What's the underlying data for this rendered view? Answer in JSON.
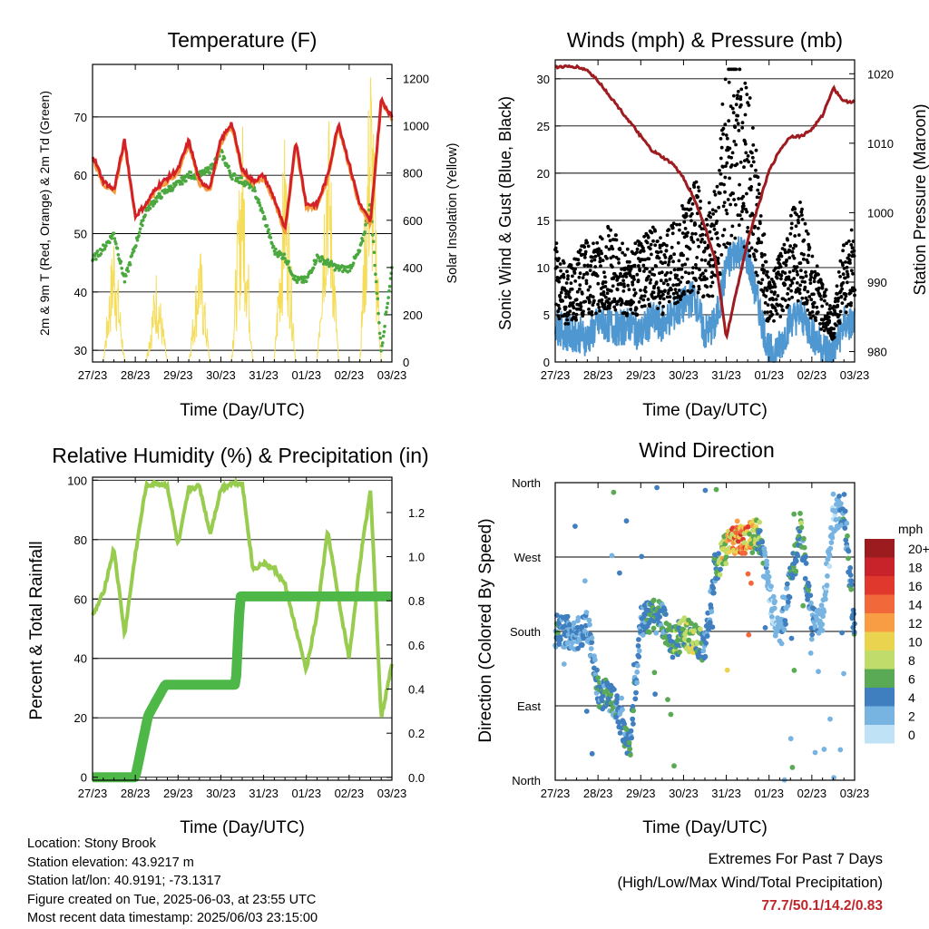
{
  "x_ticks": [
    "27/23",
    "28/23",
    "29/23",
    "30/23",
    "31/23",
    "01/23",
    "02/23",
    "03/23"
  ],
  "colors": {
    "temp": "#d42027",
    "orange": "#f39b3a",
    "dewpoint": "#4aa83f",
    "solar": "#f5dd5a",
    "wind": "#4f97d1",
    "gust": "#000000",
    "pressure": "#9e1b1f",
    "rh": "#98cc4f",
    "precip": "#4db848"
  },
  "chart_data": [
    {
      "type": "line",
      "title": "Temperature (F)",
      "xlabel": "Time (Day/UTC)",
      "ylabel": "2m & 9m T (Red, Orange) & 2m Td (Green)",
      "y2label": "Solar Insolation (Yellow)",
      "ylim": [
        28,
        79
      ],
      "y2lim": [
        0,
        1260
      ],
      "yticks": [
        30,
        40,
        50,
        60,
        70
      ],
      "y2ticks": [
        0,
        200,
        400,
        600,
        800,
        1000,
        1200
      ],
      "x": [
        0,
        0.25,
        0.5,
        0.75,
        1,
        1.25,
        1.5,
        1.75,
        2,
        2.25,
        2.5,
        2.75,
        3,
        3.25,
        3.5,
        3.75,
        4,
        4.25,
        4.5,
        4.75,
        5,
        5.25,
        5.5,
        5.75,
        6,
        6.25,
        6.5,
        6.75,
        7
      ],
      "series": [
        {
          "values": [
            63.5,
            59,
            57.5,
            66,
            53,
            55,
            58,
            59.5,
            61,
            66,
            59,
            58,
            66,
            69,
            61,
            59,
            60,
            56,
            50.5,
            66,
            55,
            55,
            60,
            69,
            62,
            55,
            52,
            73,
            70
          ]
        },
        {
          "values": [
            63,
            58.5,
            57,
            65.5,
            53,
            55,
            57.5,
            59,
            60.5,
            65.5,
            58.5,
            57.5,
            65.5,
            68.5,
            60.5,
            58.5,
            59.5,
            55.5,
            50,
            65.5,
            54.5,
            54.5,
            59.5,
            68.5,
            61.5,
            54.5,
            51.5,
            72.5,
            69.5
          ]
        },
        {
          "values": [
            45.5,
            47.5,
            50,
            42,
            48,
            54,
            56,
            57.5,
            58.5,
            60,
            60,
            61,
            64,
            60,
            59,
            58,
            53,
            47,
            46,
            42,
            42,
            46,
            45,
            44,
            44,
            47,
            55,
            30,
            44
          ]
        },
        {
          "values": [
            0,
            0,
            500,
            0,
            0,
            0,
            350,
            0,
            0,
            0,
            450,
            0,
            0,
            0,
            900,
            0,
            0,
            0,
            850,
            0,
            0,
            0,
            1000,
            0,
            0,
            0,
            1180,
            0,
            0
          ]
        }
      ]
    },
    {
      "type": "scatter",
      "title": "Winds (mph) & Pressure (mb)",
      "xlabel": "Time (Day/UTC)",
      "ylabel": "Sonic Wind & Gust (Blue, Black)",
      "y2label": "Station Pressure (Maroon)",
      "ylim": [
        0,
        32
      ],
      "y2lim": [
        978.5,
        1022
      ],
      "yticks": [
        0,
        5,
        10,
        15,
        20,
        25,
        30
      ],
      "y2ticks": [
        980,
        990,
        1000,
        1010,
        1020
      ],
      "x": [
        0,
        0.25,
        0.5,
        0.75,
        1,
        1.25,
        1.5,
        1.75,
        2,
        2.25,
        2.5,
        2.75,
        3,
        3.25,
        3.5,
        3.75,
        4,
        4.25,
        4.5,
        4.75,
        5,
        5.25,
        5.5,
        5.75,
        6,
        6.25,
        6.5,
        6.75,
        7
      ],
      "series": [
        {
          "values": [
            4,
            3,
            3,
            2.5,
            4,
            4,
            3.5,
            4,
            3,
            4.5,
            4,
            5,
            6,
            7,
            3,
            4,
            10,
            12,
            11,
            6,
            1,
            1.5,
            4.5,
            5,
            3,
            1.5,
            1,
            4,
            4
          ]
        },
        {
          "values": [
            9,
            7,
            8,
            9,
            9,
            10,
            9,
            8.5,
            9,
            10,
            9,
            11,
            12,
            14,
            11,
            13,
            22,
            24,
            21,
            14,
            6,
            8,
            11,
            12,
            8,
            6,
            4,
            9,
            10
          ]
        },
        {
          "values": [
            1021,
            1021,
            1021,
            1020.5,
            1019,
            1017,
            1015,
            1013,
            1011,
            1009,
            1008,
            1007,
            1005,
            1002,
            998,
            993,
            982,
            989,
            996,
            1001,
            1006,
            1009,
            1011,
            1011,
            1012,
            1014,
            1018,
            1016,
            1016
          ]
        }
      ]
    },
    {
      "type": "line",
      "title": "Relative Humidity (%) & Precipitation (in)",
      "xlabel": "Time (Day/UTC)",
      "ylabel": "Percent & Total Rainfall",
      "ylim": [
        -1,
        101
      ],
      "y2lim": [
        -0.013,
        1.36
      ],
      "yticks": [
        0,
        20,
        40,
        60,
        80,
        100
      ],
      "y2ticks": [
        0,
        0.2,
        0.4,
        0.6,
        0.8,
        1,
        1.2
      ],
      "x": [
        0,
        0.25,
        0.5,
        0.75,
        1,
        1.25,
        1.5,
        1.75,
        2,
        2.25,
        2.5,
        2.75,
        3,
        3.25,
        3.5,
        3.75,
        4,
        4.25,
        4.5,
        4.75,
        5,
        5.25,
        5.5,
        5.75,
        6,
        6.25,
        6.5,
        6.75,
        7
      ],
      "series": [
        {
          "values": [
            54,
            62,
            77,
            48,
            75,
            98,
            99,
            98,
            78,
            97,
            98,
            82,
            97,
            99,
            99,
            70,
            72,
            70,
            65,
            50,
            36,
            55,
            83,
            60,
            40,
            72,
            97,
            20,
            38
          ]
        },
        {
          "values": [
            0,
            0,
            0,
            0,
            0,
            0.28,
            0.32,
            0.42,
            0.42,
            0.42,
            0.42,
            0.42,
            0.42,
            0.42,
            0.82,
            0.82,
            0.82,
            0.82,
            0.82,
            0.82,
            0.82,
            0.82,
            0.82,
            0.82,
            0.82,
            0.82,
            0.82,
            0.82,
            0.82
          ]
        }
      ]
    },
    {
      "type": "scatter",
      "title": "Wind Direction",
      "xlabel": "Time (Day/UTC)",
      "ylabel": "Direction (Colored By Speed)",
      "yticks": [
        "North",
        "West",
        "South",
        "East",
        "North"
      ],
      "colorbar": {
        "title": "mph",
        "labels": [
          "20+",
          "18",
          "16",
          "14",
          "12",
          "10",
          "8",
          "6",
          "4",
          "2",
          "0"
        ],
        "colors": [
          "#9b1b1f",
          "#c8232b",
          "#e0382c",
          "#f1683a",
          "#f89d43",
          "#e9d34f",
          "#c0dd6c",
          "#5aaa55",
          "#3f7fbf",
          "#78b4e1",
          "#bfe2f6"
        ]
      },
      "x": [
        0,
        0.25,
        0.5,
        0.75,
        1,
        1.25,
        1.5,
        1.75,
        2,
        2.25,
        2.5,
        2.75,
        3,
        3.25,
        3.5,
        3.75,
        4,
        4.25,
        4.5,
        4.75,
        5,
        5.25,
        5.5,
        5.75,
        6,
        6.25,
        6.5,
        6.75,
        7
      ],
      "series": [
        {
          "values": [
            180,
            180,
            175,
            190,
            110,
            100,
            80,
            40,
            190,
            200,
            195,
            165,
            180,
            170,
            160,
            260,
            280,
            295,
            290,
            300,
            230,
            170,
            240,
            300,
            190,
            200,
            320,
            330,
            180
          ]
        }
      ]
    }
  ],
  "info": {
    "location": "Location: Stony Brook",
    "elevation": "Station elevation: 43.9217 m",
    "latlon": "Station lat/lon: 40.9191; -73.1317",
    "created": "Figure created on Tue, 2025-06-03, at 23:55 UTC",
    "recent": "Most recent data timestamp: 2025/06/03 23:15:00"
  },
  "extremes": {
    "title": "Extremes For Past 7 Days",
    "subtitle": "(High/Low/Max Wind/Total Precipitation)",
    "values": "77.7/50.1/14.2/0.83"
  }
}
